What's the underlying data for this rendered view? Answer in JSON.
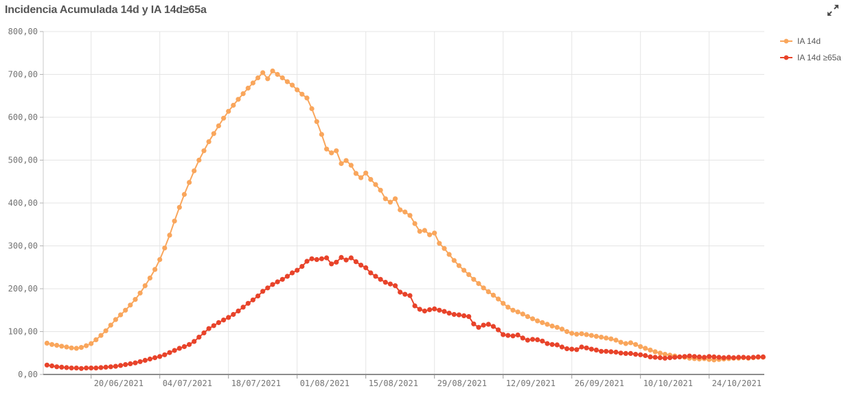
{
  "title": "Incidencia Acumulada 14d y IA 14d≥65a",
  "controls": {
    "expand_icon": "expand-arrows"
  },
  "colors": {
    "series_ia14d": "#F9A65C",
    "series_ia14d_65a": "#E8432A",
    "title_text": "#555555",
    "axis_text": "#737373",
    "gridline": "#e4e4e4",
    "x_axis_line": "#8c8c8c",
    "y_axis_line": "#c9c9c9",
    "background": "#ffffff"
  },
  "chart_data": {
    "type": "line",
    "title": "Incidencia Acumulada 14d y IA 14d≥65a",
    "xlabel": "",
    "ylabel": "",
    "ylim": [
      0,
      800
    ],
    "grid": true,
    "legend_position": "top-right",
    "marker": "circle",
    "y_tick_labels": [
      "800,00",
      "700,00",
      "600,00",
      "500,00",
      "400,00",
      "300,00",
      "200,00",
      "100,00",
      "0,00"
    ],
    "x_tick_labels": [
      "20/06/2021",
      "04/07/2021",
      "18/07/2021",
      "01/08/2021",
      "15/08/2021",
      "29/08/2021",
      "12/09/2021",
      "26/09/2021",
      "10/10/2021",
      "24/10/2021"
    ],
    "points_per_tick_interval": 14,
    "first_point_tick_offset": 9,
    "series": [
      {
        "name": "IA 14d",
        "color": "#F9A65C",
        "values": [
          73,
          70,
          68,
          66,
          64,
          62,
          61,
          63,
          67,
          72,
          81,
          91,
          102,
          115,
          128,
          139,
          150,
          162,
          175,
          190,
          207,
          225,
          245,
          268,
          295,
          325,
          358,
          390,
          420,
          448,
          475,
          500,
          522,
          543,
          562,
          580,
          598,
          614,
          628,
          642,
          655,
          668,
          680,
          692,
          704,
          690,
          708,
          700,
          692,
          683,
          675,
          664,
          654,
          645,
          620,
          590,
          560,
          526,
          517,
          522,
          492,
          499,
          488,
          469,
          459,
          470,
          455,
          443,
          430,
          410,
          402,
          410,
          384,
          379,
          371,
          352,
          334,
          336,
          326,
          330,
          306,
          294,
          280,
          266,
          254,
          243,
          233,
          222,
          212,
          202,
          193,
          185,
          176,
          166,
          157,
          150,
          146,
          141,
          135,
          130,
          125,
          121,
          117,
          113,
          110,
          106,
          100,
          96,
          94,
          95,
          93,
          91,
          89,
          87,
          85,
          83,
          80,
          75,
          72,
          74,
          70,
          65,
          61,
          57,
          53,
          50,
          47,
          45,
          43,
          41,
          40,
          38,
          37,
          36,
          37,
          35,
          34,
          35,
          36,
          37,
          38,
          38,
          39,
          38,
          39,
          40,
          40
        ]
      },
      {
        "name": "IA 14d ≥65a",
        "color": "#E8432A",
        "values": [
          22,
          20,
          18,
          17,
          16,
          15,
          15,
          14,
          15,
          15,
          15,
          16,
          17,
          18,
          19,
          21,
          23,
          25,
          27,
          30,
          33,
          36,
          39,
          42,
          46,
          51,
          56,
          61,
          65,
          70,
          77,
          87,
          97,
          107,
          114,
          121,
          127,
          133,
          140,
          148,
          157,
          166,
          174,
          183,
          194,
          202,
          210,
          216,
          222,
          229,
          237,
          243,
          252,
          264,
          270,
          268,
          270,
          272,
          258,
          262,
          273,
          267,
          272,
          263,
          255,
          249,
          237,
          229,
          222,
          215,
          211,
          207,
          192,
          187,
          184,
          160,
          152,
          148,
          151,
          153,
          150,
          147,
          143,
          140,
          139,
          137,
          135,
          118,
          110,
          115,
          117,
          112,
          104,
          93,
          91,
          90,
          92,
          85,
          80,
          82,
          81,
          78,
          72,
          70,
          69,
          64,
          60,
          59,
          58,
          64,
          62,
          59,
          57,
          54,
          54,
          53,
          52,
          50,
          49,
          49,
          47,
          46,
          44,
          41,
          40,
          39,
          38,
          39,
          40,
          41,
          42,
          43,
          42,
          41,
          40,
          42,
          41,
          40,
          39,
          40,
          39,
          40,
          40,
          39,
          40,
          41,
          41
        ]
      }
    ]
  }
}
